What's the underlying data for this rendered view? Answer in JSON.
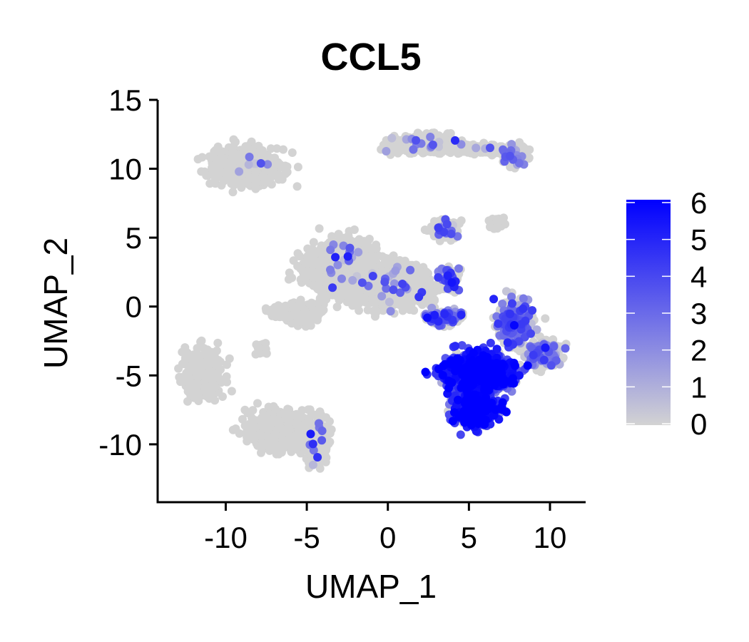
{
  "chart_data": {
    "type": "scatter",
    "title": "CCL5",
    "xlabel": "UMAP_1",
    "ylabel": "UMAP_2",
    "xlim": [
      -14.2,
      12.2
    ],
    "ylim": [
      -14.2,
      15.0
    ],
    "x_ticks": [
      "-10",
      "-5",
      "0",
      "5",
      "10"
    ],
    "x_tick_values": [
      -10,
      -5,
      0,
      5,
      10
    ],
    "y_ticks": [
      "15",
      "10",
      "5",
      "0",
      "-5",
      "-10"
    ],
    "y_tick_values": [
      15,
      10,
      5,
      0,
      -5,
      -10
    ],
    "grid": false,
    "legend": {
      "type": "colorbar",
      "placement": "right",
      "range": [
        0,
        6
      ],
      "tick_labels": [
        "6",
        "5",
        "4",
        "3",
        "2",
        "1",
        "0"
      ],
      "tick_values": [
        6,
        5,
        4,
        3,
        2,
        1,
        0
      ],
      "color_low": "#d3d3d3",
      "color_high": "#0000ff"
    },
    "colors": {
      "low": "#d3d3d3",
      "high": "#0000ff"
    },
    "clusters": [
      {
        "cx": -8.8,
        "cy": 10.2,
        "sx": 1.7,
        "sy": 1.1,
        "n": 800,
        "expr_frac": 0.02,
        "expr_mean": 1.5
      },
      {
        "cx": 2.2,
        "cy": 11.8,
        "sx": 1.8,
        "sy": 0.55,
        "n": 550,
        "expr_frac": 0.05,
        "expr_mean": 2.0
      },
      {
        "cx": 6.0,
        "cy": 11.4,
        "sx": 1.5,
        "sy": 0.25,
        "n": 220,
        "expr_frac": 0.02,
        "expr_mean": 1.5
      },
      {
        "cx": 7.8,
        "cy": 11.0,
        "sx": 0.7,
        "sy": 0.6,
        "n": 160,
        "expr_frac": 0.12,
        "expr_mean": 2.5
      },
      {
        "cx": -2.8,
        "cy": 2.8,
        "sx": 1.8,
        "sy": 1.6,
        "n": 1300,
        "expr_frac": 0.015,
        "expr_mean": 2.5
      },
      {
        "cx": 0.5,
        "cy": 1.5,
        "sx": 2.0,
        "sy": 1.3,
        "n": 900,
        "expr_frac": 0.015,
        "expr_mean": 2.5
      },
      {
        "cx": -5.5,
        "cy": -0.5,
        "sx": 1.2,
        "sy": 0.6,
        "n": 250,
        "expr_frac": 0.0,
        "expr_mean": 0
      },
      {
        "cx": -7.8,
        "cy": -3.0,
        "sx": 0.3,
        "sy": 0.4,
        "n": 40,
        "expr_frac": 0.0,
        "expr_mean": 0
      },
      {
        "cx": 3.5,
        "cy": 5.6,
        "sx": 0.7,
        "sy": 0.5,
        "n": 200,
        "expr_frac": 0.08,
        "expr_mean": 3.0
      },
      {
        "cx": 3.8,
        "cy": 2.0,
        "sx": 0.5,
        "sy": 0.8,
        "n": 120,
        "expr_frac": 0.25,
        "expr_mean": 3.0
      },
      {
        "cx": 3.5,
        "cy": -0.8,
        "sx": 1.0,
        "sy": 0.5,
        "n": 140,
        "expr_frac": 0.5,
        "expr_mean": 3.0
      },
      {
        "cx": 6.8,
        "cy": 6.0,
        "sx": 0.5,
        "sy": 0.4,
        "n": 20,
        "expr_frac": 0.0,
        "expr_mean": 0
      },
      {
        "cx": -11.5,
        "cy": -4.8,
        "sx": 0.9,
        "sy": 1.5,
        "n": 500,
        "expr_frac": 0.0,
        "expr_mean": 0
      },
      {
        "cx": -6.5,
        "cy": -9.0,
        "sx": 1.7,
        "sy": 1.1,
        "n": 800,
        "expr_frac": 0.0,
        "expr_mean": 0
      },
      {
        "cx": -4.5,
        "cy": -9.8,
        "sx": 0.7,
        "sy": 1.4,
        "n": 250,
        "expr_frac": 0.03,
        "expr_mean": 2.5
      },
      {
        "cx": 7.8,
        "cy": -1.2,
        "sx": 0.9,
        "sy": 1.3,
        "n": 350,
        "expr_frac": 0.35,
        "expr_mean": 3.0
      },
      {
        "cx": 9.6,
        "cy": -3.4,
        "sx": 0.9,
        "sy": 0.8,
        "n": 300,
        "expr_frac": 0.2,
        "expr_mean": 2.0
      },
      {
        "cx": 5.6,
        "cy": -4.8,
        "sx": 1.7,
        "sy": 1.2,
        "n": 1300,
        "expr_frac": 0.9,
        "expr_mean": 4.5
      },
      {
        "cx": 5.4,
        "cy": -7.4,
        "sx": 1.1,
        "sy": 1.0,
        "n": 600,
        "expr_frac": 0.9,
        "expr_mean": 4.5
      }
    ]
  }
}
